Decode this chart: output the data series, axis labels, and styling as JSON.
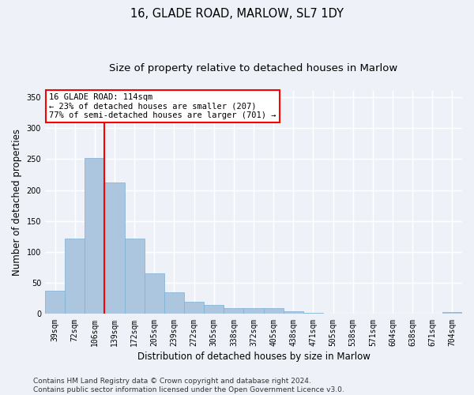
{
  "title_line1": "16, GLADE ROAD, MARLOW, SL7 1DY",
  "title_line2": "Size of property relative to detached houses in Marlow",
  "xlabel": "Distribution of detached houses by size in Marlow",
  "ylabel": "Number of detached properties",
  "categories": [
    "39sqm",
    "72sqm",
    "106sqm",
    "139sqm",
    "172sqm",
    "205sqm",
    "239sqm",
    "272sqm",
    "305sqm",
    "338sqm",
    "372sqm",
    "405sqm",
    "438sqm",
    "471sqm",
    "505sqm",
    "538sqm",
    "571sqm",
    "604sqm",
    "638sqm",
    "671sqm",
    "704sqm"
  ],
  "values": [
    38,
    122,
    252,
    212,
    122,
    65,
    35,
    20,
    15,
    10,
    10,
    9,
    4,
    2,
    1,
    1,
    1,
    1,
    0,
    0,
    3
  ],
  "bar_color": "#adc6e0",
  "bar_edge_color": "#7bafd4",
  "vline_index": 2,
  "annotation_text": "16 GLADE ROAD: 114sqm\n← 23% of detached houses are smaller (207)\n77% of semi-detached houses are larger (701) →",
  "annotation_box_color": "white",
  "annotation_box_edgecolor": "red",
  "vline_color": "red",
  "ylim": [
    0,
    360
  ],
  "yticks": [
    0,
    50,
    100,
    150,
    200,
    250,
    300,
    350
  ],
  "background_color": "#eef2f8",
  "grid_color": "white",
  "footer_text": "Contains HM Land Registry data © Crown copyright and database right 2024.\nContains public sector information licensed under the Open Government Licence v3.0.",
  "title_fontsize": 10.5,
  "subtitle_fontsize": 9.5,
  "axis_label_fontsize": 8.5,
  "tick_fontsize": 7,
  "annotation_fontsize": 7.5,
  "footer_fontsize": 6.5
}
